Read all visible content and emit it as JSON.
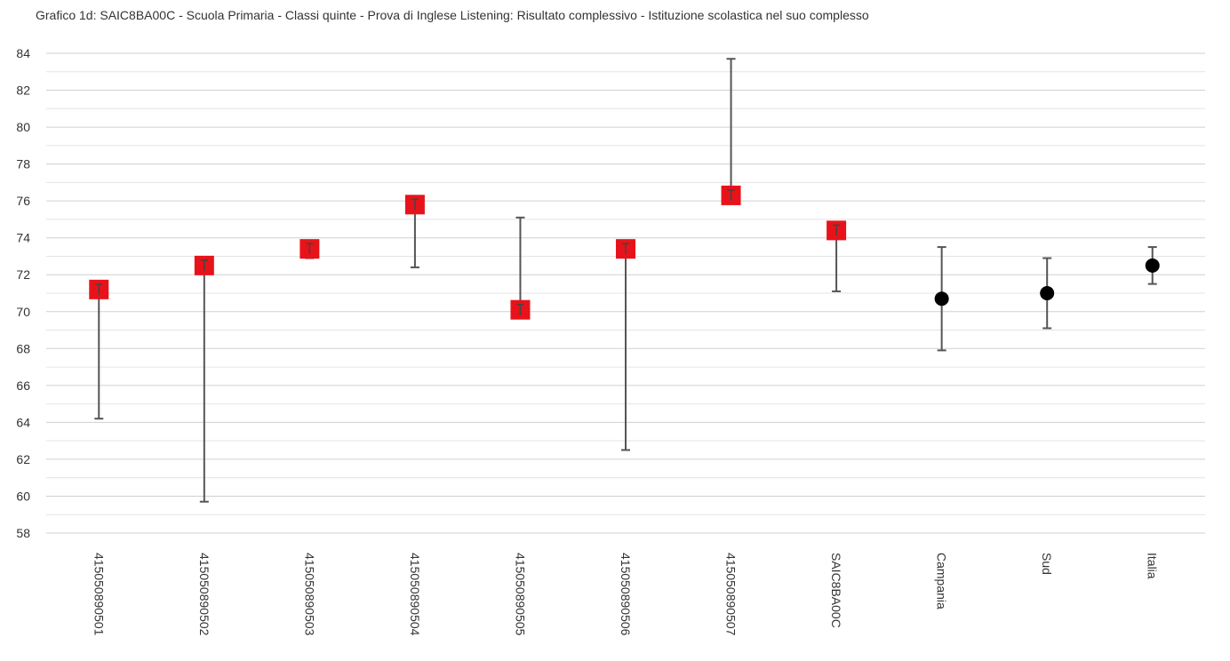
{
  "chart_data": {
    "type": "scatter",
    "title": "Grafico 1d: SAIC8BA00C - Scuola Primaria - Classi quinte - Prova di Inglese Listening: Risultato complessivo - Istituzione scolastica nel suo complesso",
    "xlabel": "",
    "ylabel": "",
    "ylim": [
      58,
      84
    ],
    "yticks": [
      "58",
      "60",
      "62",
      "64",
      "66",
      "68",
      "70",
      "72",
      "74",
      "76",
      "78",
      "80",
      "82",
      "84"
    ],
    "grid": true,
    "categories": [
      "415050890501",
      "415050890502",
      "415050890503",
      "415050890504",
      "415050890505",
      "415050890506",
      "415050890507",
      "SAIC8BA00C",
      "Campania",
      "Sud",
      "Italia"
    ],
    "values": [
      71.2,
      72.5,
      73.4,
      75.8,
      70.1,
      73.4,
      76.3,
      74.4,
      70.7,
      71.0,
      72.5
    ],
    "err_low": [
      64.2,
      59.7,
      72.9,
      72.4,
      70.1,
      62.5,
      76.3,
      71.1,
      67.9,
      69.1,
      71.5
    ],
    "err_high": [
      71.2,
      72.5,
      73.4,
      75.8,
      75.1,
      73.4,
      83.7,
      74.4,
      73.5,
      72.9,
      73.5
    ],
    "markers": [
      "square",
      "square",
      "square",
      "square",
      "square",
      "square",
      "square",
      "square",
      "circle",
      "circle",
      "circle"
    ],
    "colors": {
      "square": "#e8131a",
      "circle": "#000000",
      "errorbar": "#555555",
      "grid": "#d0d0d0",
      "text": "#333333"
    }
  }
}
